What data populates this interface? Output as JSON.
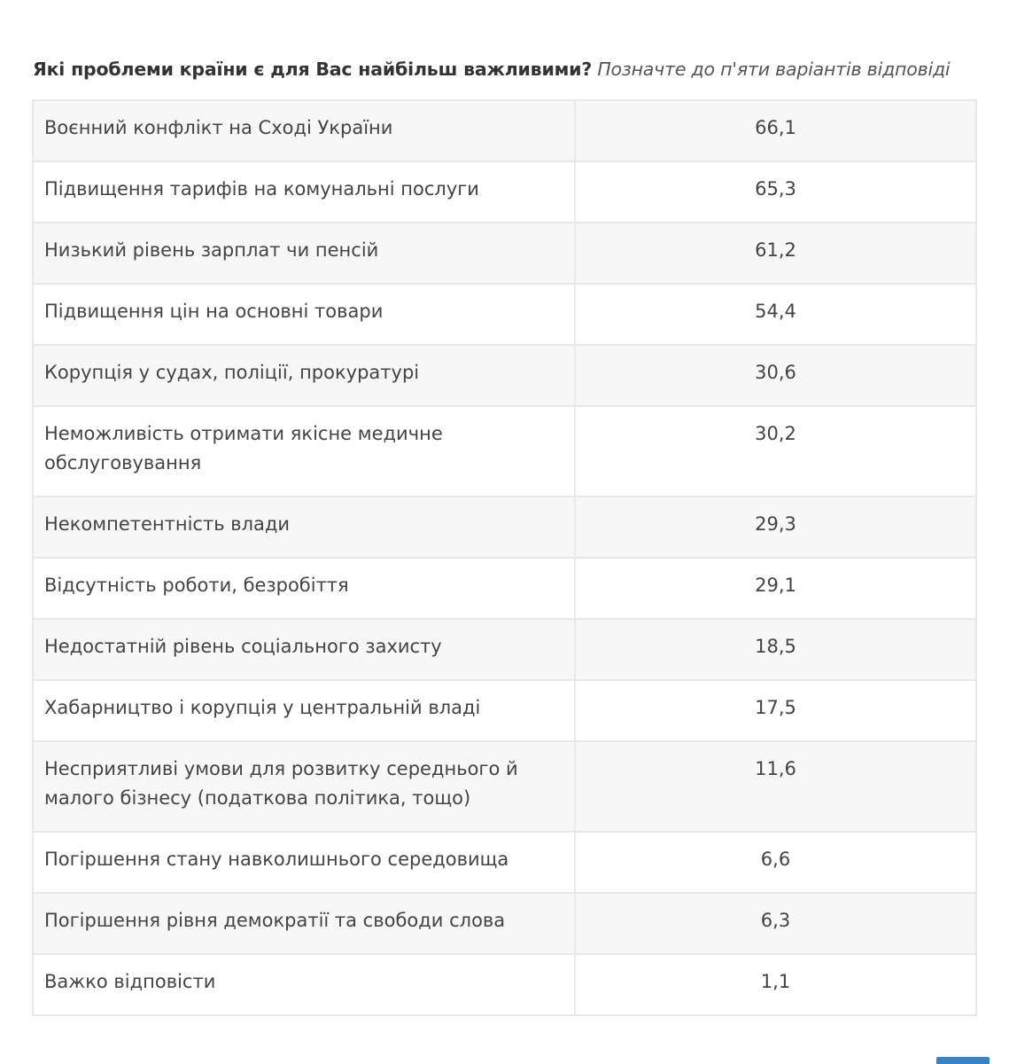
{
  "question": {
    "bold": "Які проблеми країни є для Вас найбільш важливими?",
    "italic": "Позначте до п'яти варіантів відповіді"
  },
  "rows": [
    {
      "label": "Воєнний конфлікт на Сході України",
      "value": "66,1"
    },
    {
      "label": "Підвищення тарифів на комунальні послуги",
      "value": "65,3"
    },
    {
      "label": "Низький рівень зарплат чи пенсій",
      "value": "61,2"
    },
    {
      "label": "Підвищення цін на основні товари",
      "value": "54,4"
    },
    {
      "label": "Корупція у судах, поліції, прокуратурі",
      "value": "30,6"
    },
    {
      "label": "Неможливість отримати якісне медичне обслуговування",
      "value": "30,2"
    },
    {
      "label": "Некомпетентність влади",
      "value": "29,3"
    },
    {
      "label": "Відсутність роботи, безробіття",
      "value": "29,1"
    },
    {
      "label": "Недостатній рівень соціального захисту",
      "value": "18,5"
    },
    {
      "label": "Хабарництво і корупція у центральній владі",
      "value": "17,5"
    },
    {
      "label": "Несприятливі умови для розвитку середнього й малого бізнесу (податкова політика, тощо)",
      "value": "11,6"
    },
    {
      "label": "Погіршення стану навколишнього середовища",
      "value": "6,6"
    },
    {
      "label": "Погіршення рівня демократії та свободи слова",
      "value": "6,3"
    },
    {
      "label": "Важко відповісти",
      "value": "1,1"
    }
  ],
  "colors": {
    "row_odd": "#f7f7f7",
    "row_even": "#ffffff",
    "border": "#e8e8e8",
    "badge": "#3b82c4"
  }
}
